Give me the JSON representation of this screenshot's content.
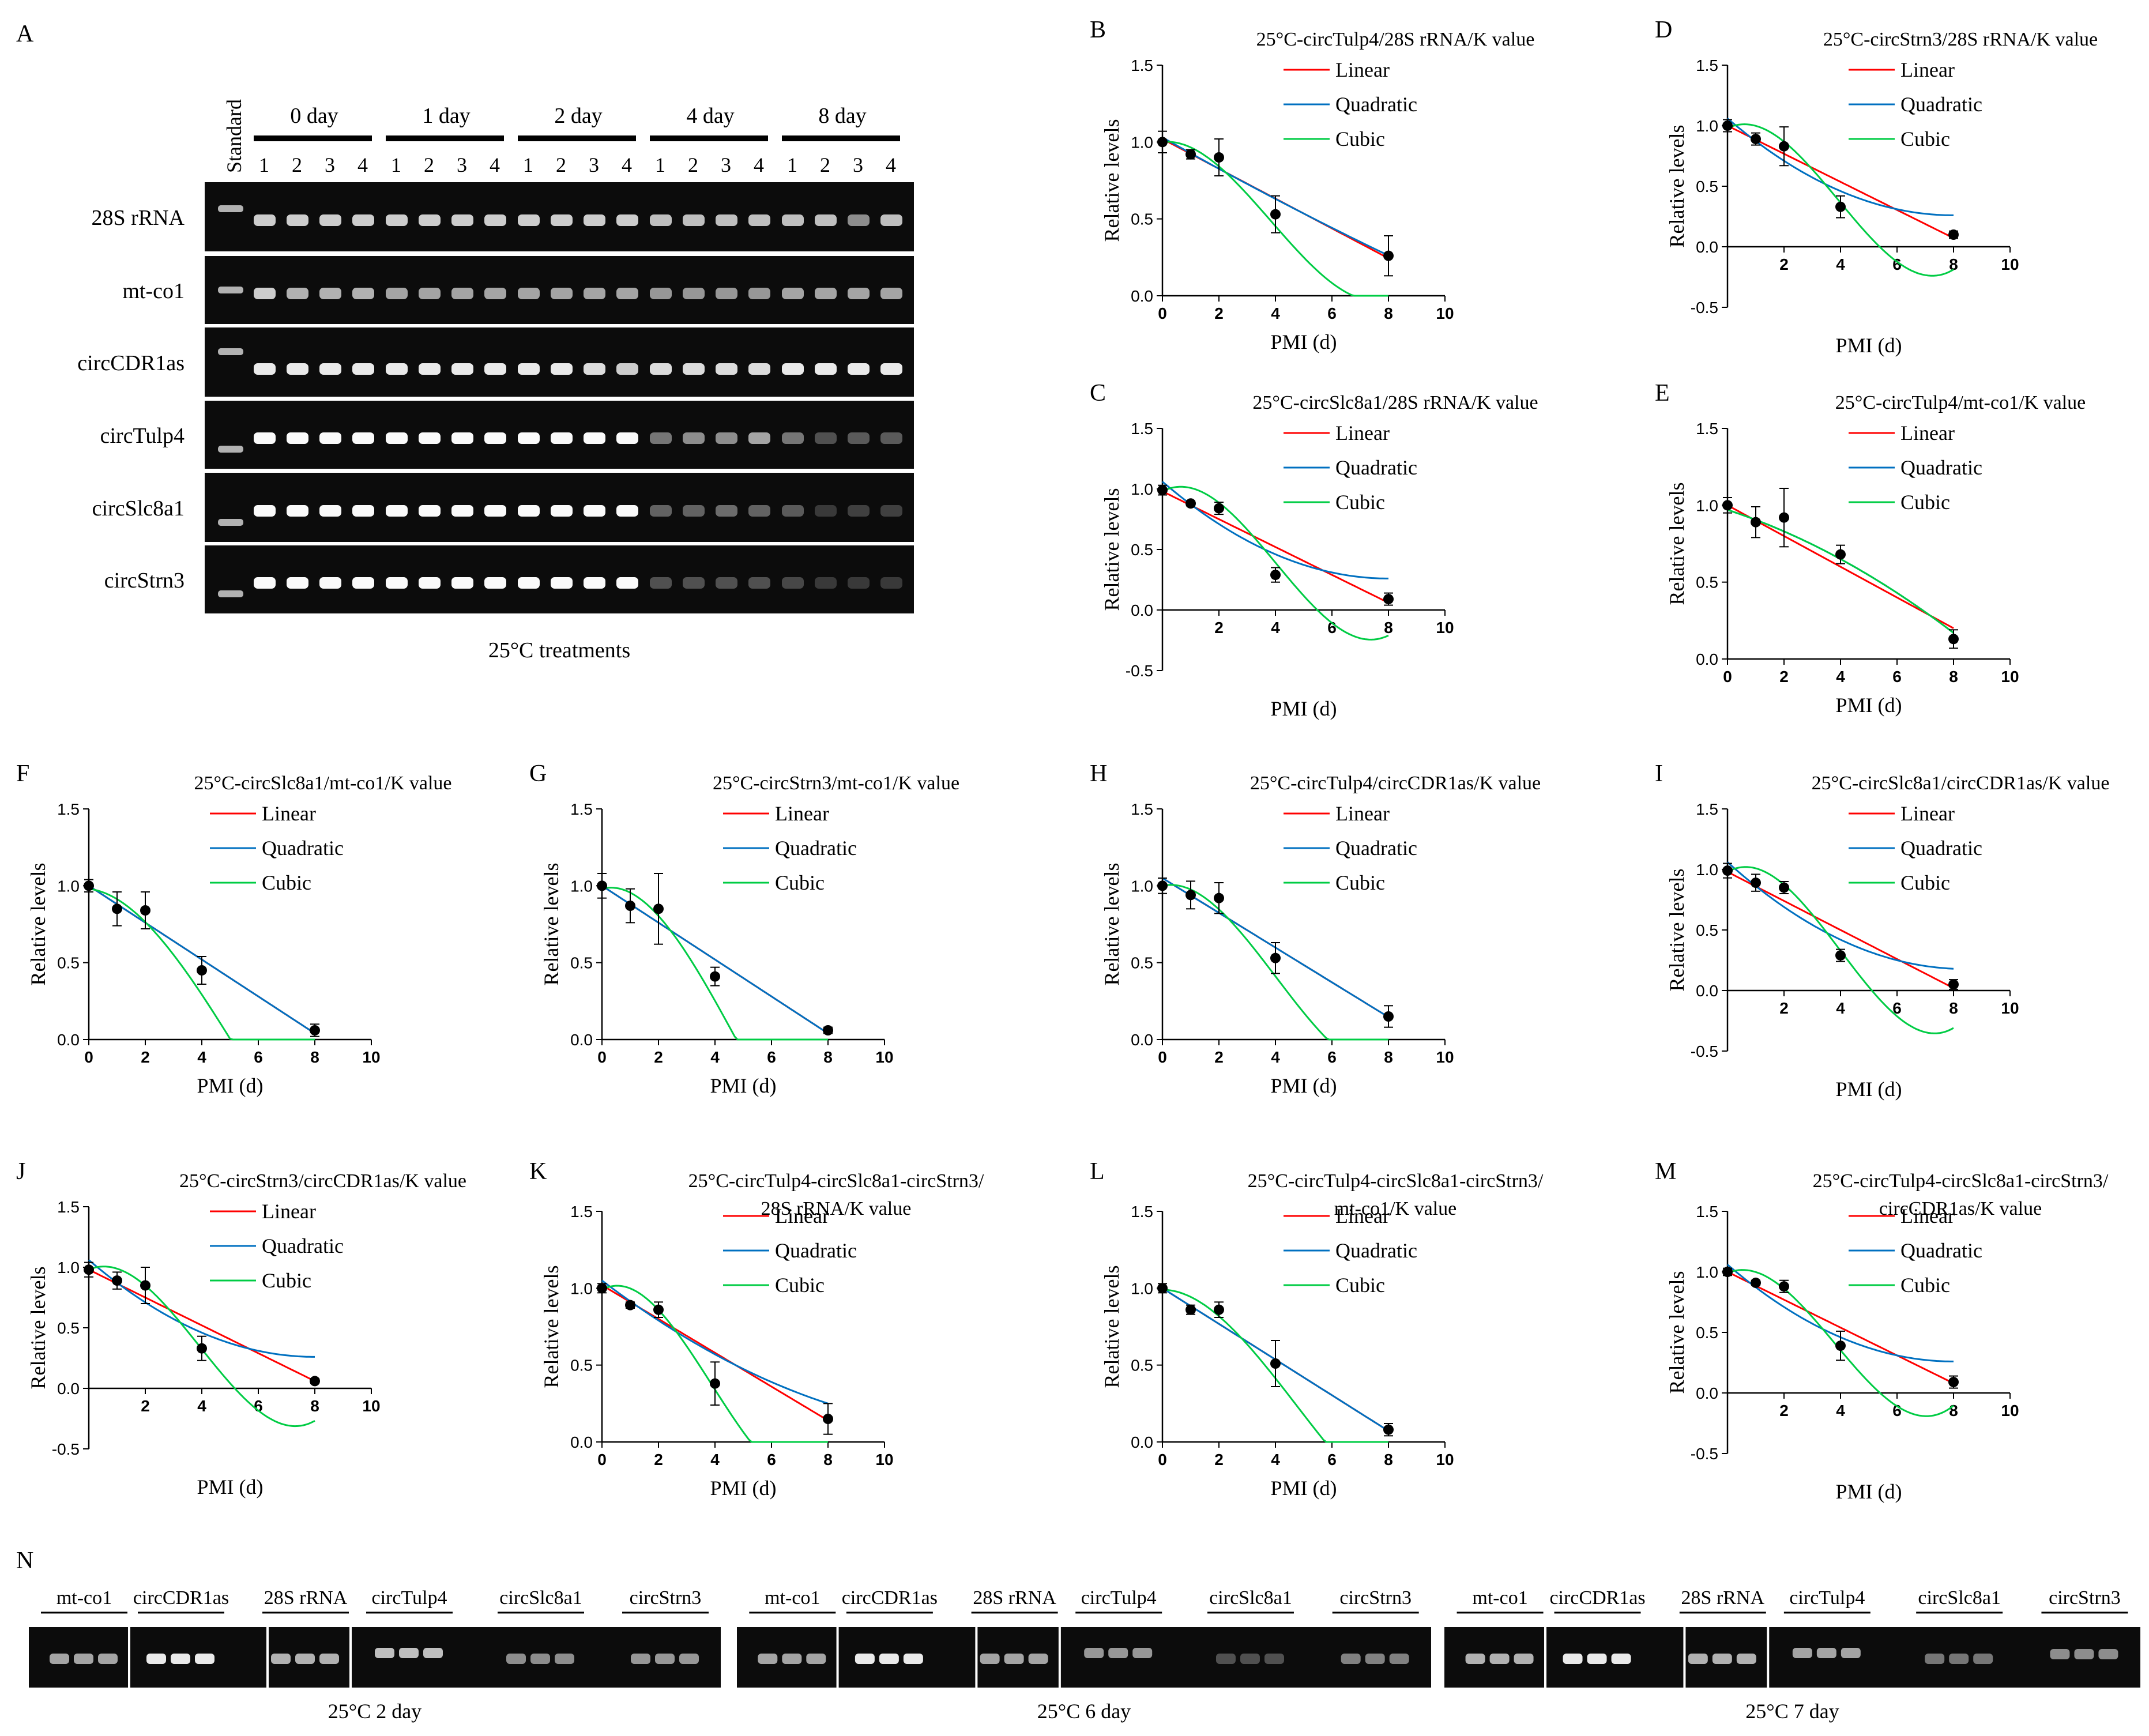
{
  "panel_a": {
    "letter": "A",
    "standard_label": "Standard",
    "day_groups": [
      "0 day",
      "1 day",
      "2 day",
      "4 day",
      "8 day"
    ],
    "lane_numbers": [
      "1",
      "2",
      "3",
      "4"
    ],
    "rows": [
      {
        "label": "28S rRNA",
        "intensity": [
          0.85,
          0.85,
          0.85,
          0.85,
          0.85,
          0.85,
          0.85,
          0.85,
          0.85,
          0.85,
          0.85,
          0.85,
          0.8,
          0.8,
          0.8,
          0.8,
          0.8,
          0.8,
          0.6,
          0.8
        ]
      },
      {
        "label": "mt-co1",
        "intensity": [
          0.85,
          0.75,
          0.75,
          0.75,
          0.7,
          0.7,
          0.7,
          0.7,
          0.7,
          0.7,
          0.7,
          0.7,
          0.65,
          0.65,
          0.65,
          0.65,
          0.7,
          0.7,
          0.7,
          0.7
        ]
      },
      {
        "label": "circCDR1as",
        "intensity": [
          0.95,
          0.95,
          0.95,
          0.95,
          0.95,
          0.95,
          0.95,
          0.95,
          0.95,
          0.95,
          0.9,
          0.85,
          0.9,
          0.9,
          0.9,
          0.9,
          0.95,
          0.95,
          0.95,
          0.95
        ]
      },
      {
        "label": "circTulp4",
        "intensity": [
          1,
          1,
          1,
          1,
          1,
          1,
          1,
          1,
          1,
          1,
          1,
          1,
          0.5,
          0.6,
          0.6,
          0.7,
          0.5,
          0.3,
          0.35,
          0.35
        ]
      },
      {
        "label": "circSlc8a1",
        "intensity": [
          1,
          1,
          1,
          1,
          1,
          1,
          1,
          1,
          1,
          1,
          1,
          1,
          0.4,
          0.4,
          0.45,
          0.4,
          0.35,
          0.15,
          0.2,
          0.2
        ]
      },
      {
        "label": "circStrn3",
        "intensity": [
          1,
          1,
          1,
          1,
          1,
          1,
          1,
          1,
          1,
          1,
          1,
          1,
          0.3,
          0.3,
          0.3,
          0.3,
          0.25,
          0.15,
          0.15,
          0.15
        ]
      }
    ],
    "caption": "25°C treatments"
  },
  "colors": {
    "linear": "#ff0000",
    "quadratic": "#0070c0",
    "cubic": "#00cc44",
    "points": "#000000"
  },
  "legend_labels": [
    "Linear",
    "Quadratic",
    "Cubic"
  ],
  "chart_data": [
    {
      "letter": "B",
      "type": "line",
      "title": [
        "25°C-circTulp4/28S rRNA/K value"
      ],
      "xlabel": "PMI (d)",
      "ylabel": "Relative levels",
      "xlim": [
        0,
        10
      ],
      "ylim": [
        0,
        1.5
      ],
      "xticks": [
        "0",
        "2",
        "4",
        "6",
        "8",
        "10"
      ],
      "yticks": [
        "0.0",
        "0.5",
        "1.0",
        "1.5"
      ],
      "points": {
        "x": [
          0,
          1,
          2,
          4,
          8
        ],
        "y": [
          1.0,
          0.92,
          0.9,
          0.53,
          0.26
        ],
        "err": [
          0.07,
          0.03,
          0.12,
          0.12,
          0.13
        ]
      },
      "fits": {
        "linear": [
          1.02,
          -0.097
        ],
        "quadratic": [
          1.03,
          -0.104,
          0.001
        ],
        "cubic": [
          1.0,
          0.02,
          -0.06,
          0.0052
        ]
      }
    },
    {
      "letter": "D",
      "type": "line",
      "title": [
        "25°C-circStrn3/28S rRNA/K value"
      ],
      "xlabel": "PMI (d)",
      "ylabel": "Relative levels",
      "xlim": [
        0,
        10
      ],
      "ylim": [
        -0.5,
        1.5
      ],
      "xticks": [
        "2",
        "4",
        "6",
        "8",
        "10"
      ],
      "yticks": [
        "-0.5",
        "0.0",
        "0.5",
        "1.0",
        "1.5"
      ],
      "points": {
        "x": [
          0,
          1,
          2,
          4,
          8
        ],
        "y": [
          1.0,
          0.89,
          0.83,
          0.33,
          0.1
        ],
        "err": [
          0.05,
          0.05,
          0.16,
          0.09,
          0.03
        ]
      },
      "fits": {
        "linear": [
          1.0,
          -0.116
        ],
        "quadratic": [
          1.06,
          -0.2,
          0.0125
        ],
        "cubic": [
          0.98,
          0.11,
          -0.1,
          0.0085
        ]
      }
    },
    {
      "letter": "C",
      "type": "line",
      "title": [
        "25°C-circSlc8a1/28S rRNA/K value"
      ],
      "xlabel": "PMI (d)",
      "ylabel": "Relative levels",
      "xlim": [
        0,
        10
      ],
      "ylim": [
        -0.5,
        1.5
      ],
      "xticks": [
        "2",
        "4",
        "6",
        "8",
        "10"
      ],
      "yticks": [
        "-0.5",
        "0.0",
        "0.5",
        "1.0",
        "1.5"
      ],
      "points": {
        "x": [
          0,
          1,
          2,
          4,
          8
        ],
        "y": [
          0.99,
          0.88,
          0.84,
          0.29,
          0.09
        ],
        "err": [
          0.04,
          0.02,
          0.05,
          0.06,
          0.05
        ]
      },
      "fits": {
        "linear": [
          0.98,
          -0.115
        ],
        "quadratic": [
          1.06,
          -0.2,
          0.0125
        ],
        "cubic": [
          0.98,
          0.12,
          -0.1,
          0.0083
        ]
      }
    },
    {
      "letter": "E",
      "type": "line",
      "title": [
        "25°C-circTulp4/mt-co1/K value"
      ],
      "xlabel": "PMI (d)",
      "ylabel": "Relative levels",
      "xlim": [
        0,
        10
      ],
      "ylim": [
        0,
        1.5
      ],
      "xticks": [
        "0",
        "2",
        "4",
        "6",
        "8",
        "10"
      ],
      "yticks": [
        "0.0",
        "0.5",
        "1.0",
        "1.5"
      ],
      "points": {
        "x": [
          0,
          1,
          2,
          4,
          8
        ],
        "y": [
          1.0,
          0.89,
          0.92,
          0.68,
          0.13
        ],
        "err": [
          0.05,
          0.1,
          0.19,
          0.06,
          0.06
        ]
      },
      "fits": {
        "linear": [
          1.0,
          -0.1
        ],
        "quadratic": [
          0.97,
          -0.06,
          -0.005
        ],
        "cubic": [
          0.97,
          -0.06,
          -0.005,
          0.0
        ]
      }
    },
    {
      "letter": "F",
      "type": "line",
      "title": [
        "25°C-circSlc8a1/mt-co1/K value"
      ],
      "xlabel": "PMI (d)",
      "ylabel": "Relative levels",
      "xlim": [
        0,
        10
      ],
      "ylim": [
        0,
        1.5
      ],
      "xticks": [
        "0",
        "2",
        "4",
        "6",
        "8",
        "10"
      ],
      "yticks": [
        "0.0",
        "0.5",
        "1.0",
        "1.5"
      ],
      "points": {
        "x": [
          0,
          1,
          2,
          4,
          8
        ],
        "y": [
          1.0,
          0.85,
          0.84,
          0.45,
          0.06
        ],
        "err": [
          0.04,
          0.11,
          0.12,
          0.09,
          0.04
        ]
      },
      "fits": {
        "linear": [
          1.0,
          -0.12
        ],
        "quadratic": [
          1.0,
          -0.12,
          0.0
        ],
        "cubic": [
          0.98,
          -0.02,
          -0.05,
          0.003
        ]
      }
    },
    {
      "letter": "G",
      "type": "line",
      "title": [
        "25°C-circStrn3/mt-co1/K value"
      ],
      "xlabel": "PMI (d)",
      "ylabel": "Relative levels",
      "xlim": [
        0,
        10
      ],
      "ylim": [
        0,
        1.5
      ],
      "xticks": [
        "0",
        "2",
        "4",
        "6",
        "8",
        "10"
      ],
      "yticks": [
        "0.0",
        "0.5",
        "1.0",
        "1.5"
      ],
      "points": {
        "x": [
          0,
          1,
          2,
          4,
          8
        ],
        "y": [
          1.0,
          0.87,
          0.85,
          0.41,
          0.06
        ],
        "err": [
          0.08,
          0.11,
          0.23,
          0.06,
          0.02
        ]
      },
      "fits": {
        "linear": [
          1.0,
          -0.12
        ],
        "quadratic": [
          1.0,
          -0.12,
          0.0
        ],
        "cubic": [
          0.98,
          0.05,
          -0.08,
          0.0055
        ]
      }
    },
    {
      "letter": "H",
      "type": "line",
      "title": [
        "25°C-circTulp4/circCDR1as/K value"
      ],
      "xlabel": "PMI (d)",
      "ylabel": "Relative levels",
      "xlim": [
        0,
        10
      ],
      "ylim": [
        0,
        1.5
      ],
      "xticks": [
        "0",
        "2",
        "4",
        "6",
        "8",
        "10"
      ],
      "yticks": [
        "0.0",
        "0.5",
        "1.0",
        "1.5"
      ],
      "points": {
        "x": [
          0,
          1,
          2,
          4,
          8
        ],
        "y": [
          1.0,
          0.94,
          0.92,
          0.53,
          0.15
        ],
        "err": [
          0.05,
          0.09,
          0.1,
          0.1,
          0.07
        ]
      },
      "fits": {
        "linear": [
          1.05,
          -0.113
        ],
        "quadratic": [
          1.05,
          -0.113,
          0.0
        ],
        "cubic": [
          1.0,
          0.04,
          -0.07,
          0.0058
        ]
      }
    },
    {
      "letter": "I",
      "type": "line",
      "title": [
        "25°C-circSlc8a1/circCDR1as/K value"
      ],
      "xlabel": "PMI (d)",
      "ylabel": "Relative levels",
      "xlim": [
        0,
        10
      ],
      "ylim": [
        -0.5,
        1.5
      ],
      "xticks": [
        "2",
        "4",
        "6",
        "8",
        "10"
      ],
      "yticks": [
        "-0.5",
        "0.0",
        "0.5",
        "1.0",
        "1.5"
      ],
      "points": {
        "x": [
          0,
          1,
          2,
          4,
          8
        ],
        "y": [
          0.99,
          0.89,
          0.85,
          0.29,
          0.05
        ],
        "err": [
          0.06,
          0.07,
          0.05,
          0.05,
          0.04
        ]
      },
      "fits": {
        "linear": [
          0.98,
          -0.12
        ],
        "quadratic": [
          1.06,
          -0.21,
          0.0125
        ],
        "cubic": [
          0.98,
          0.13,
          -0.11,
          0.0092
        ]
      }
    },
    {
      "letter": "J",
      "type": "line",
      "title": [
        "25°C-circStrn3/circCDR1as/K value"
      ],
      "xlabel": "PMI (d)",
      "ylabel": "Relative levels",
      "xlim": [
        0,
        10
      ],
      "ylim": [
        -0.5,
        1.5
      ],
      "xticks": [
        "2",
        "4",
        "6",
        "8",
        "10"
      ],
      "yticks": [
        "-0.5",
        "0.0",
        "0.5",
        "1.0",
        "1.5"
      ],
      "points": {
        "x": [
          0,
          1,
          2,
          4,
          8
        ],
        "y": [
          0.98,
          0.89,
          0.85,
          0.33,
          0.06
        ],
        "err": [
          0.06,
          0.07,
          0.15,
          0.1,
          0.02
        ]
      },
      "fits": {
        "linear": [
          0.98,
          -0.115
        ],
        "quadratic": [
          1.06,
          -0.2,
          0.0125
        ],
        "cubic": [
          0.98,
          0.1,
          -0.1,
          0.0085
        ]
      }
    },
    {
      "letter": "K",
      "type": "line",
      "title": [
        "25°C-circTulp4-circSlc8a1-circStrn3/",
        "28S rRNA/K value"
      ],
      "xlabel": "PMI (d)",
      "ylabel": "Relative levels",
      "xlim": [
        0,
        10
      ],
      "ylim": [
        0,
        1.5
      ],
      "xticks": [
        "0",
        "2",
        "4",
        "6",
        "8",
        "10"
      ],
      "yticks": [
        "0.0",
        "0.5",
        "1.0",
        "1.5"
      ],
      "points": {
        "x": [
          0,
          1,
          2,
          4,
          8
        ],
        "y": [
          1.0,
          0.89,
          0.86,
          0.38,
          0.15
        ],
        "err": [
          0.03,
          0.02,
          0.05,
          0.14,
          0.1
        ]
      },
      "fits": {
        "linear": [
          1.02,
          -0.11
        ],
        "quadratic": [
          1.05,
          -0.14,
          0.005
        ],
        "cubic": [
          0.99,
          0.1,
          -0.1,
          0.0086
        ]
      }
    },
    {
      "letter": "L",
      "type": "line",
      "title": [
        "25°C-circTulp4-circSlc8a1-circStrn3/",
        "mt-co1/K value"
      ],
      "xlabel": "PMI (d)",
      "ylabel": "Relative levels",
      "xlim": [
        0,
        10
      ],
      "ylim": [
        0,
        1.5
      ],
      "xticks": [
        "0",
        "2",
        "4",
        "6",
        "8",
        "10"
      ],
      "yticks": [
        "0.0",
        "0.5",
        "1.0",
        "1.5"
      ],
      "points": {
        "x": [
          0,
          1,
          2,
          4,
          8
        ],
        "y": [
          1.0,
          0.86,
          0.86,
          0.51,
          0.08
        ],
        "err": [
          0.03,
          0.03,
          0.05,
          0.15,
          0.04
        ]
      },
      "fits": {
        "linear": [
          1.0,
          -0.116
        ],
        "quadratic": [
          1.0,
          -0.116,
          0.0
        ],
        "cubic": [
          0.99,
          0.0,
          -0.05,
          0.0035
        ]
      }
    },
    {
      "letter": "M",
      "type": "line",
      "title": [
        "25°C-circTulp4-circSlc8a1-circStrn3/",
        "circCDR1as/K value"
      ],
      "xlabel": "PMI (d)",
      "ylabel": "Relative levels",
      "xlim": [
        0,
        10
      ],
      "ylim": [
        -0.5,
        1.5
      ],
      "xticks": [
        "2",
        "4",
        "6",
        "8",
        "10"
      ],
      "yticks": [
        "-0.5",
        "0.0",
        "0.5",
        "1.0",
        "1.5"
      ],
      "points": {
        "x": [
          0,
          1,
          2,
          4,
          8
        ],
        "y": [
          1.0,
          0.91,
          0.88,
          0.39,
          0.09
        ],
        "err": [
          0.03,
          0.02,
          0.05,
          0.12,
          0.05
        ]
      },
      "fits": {
        "linear": [
          1.0,
          -0.115
        ],
        "quadratic": [
          1.06,
          -0.2,
          0.0125
        ],
        "cubic": [
          0.99,
          0.1,
          -0.1,
          0.0088
        ]
      }
    }
  ],
  "panel_n": {
    "letter": "N",
    "groups": [
      {
        "caption": "25°C 2 day",
        "labels": [
          "mt-co1",
          "circCDR1as",
          "28S rRNA",
          "circTulp4",
          "circSlc8a1",
          "circStrn3"
        ],
        "intensity": [
          0.7,
          0.95,
          0.75,
          0.8,
          0.6,
          0.65
        ]
      },
      {
        "caption": "25°C 6 day",
        "labels": [
          "mt-co1",
          "circCDR1as",
          "28S rRNA",
          "circTulp4",
          "circSlc8a1",
          "circStrn3"
        ],
        "intensity": [
          0.7,
          0.95,
          0.7,
          0.65,
          0.3,
          0.55
        ]
      },
      {
        "caption": "25°C 7 day",
        "labels": [
          "mt-co1",
          "circCDR1as",
          "28S rRNA",
          "circTulp4",
          "circSlc8a1",
          "circStrn3"
        ],
        "intensity": [
          0.75,
          0.95,
          0.75,
          0.7,
          0.5,
          0.6
        ]
      }
    ]
  }
}
